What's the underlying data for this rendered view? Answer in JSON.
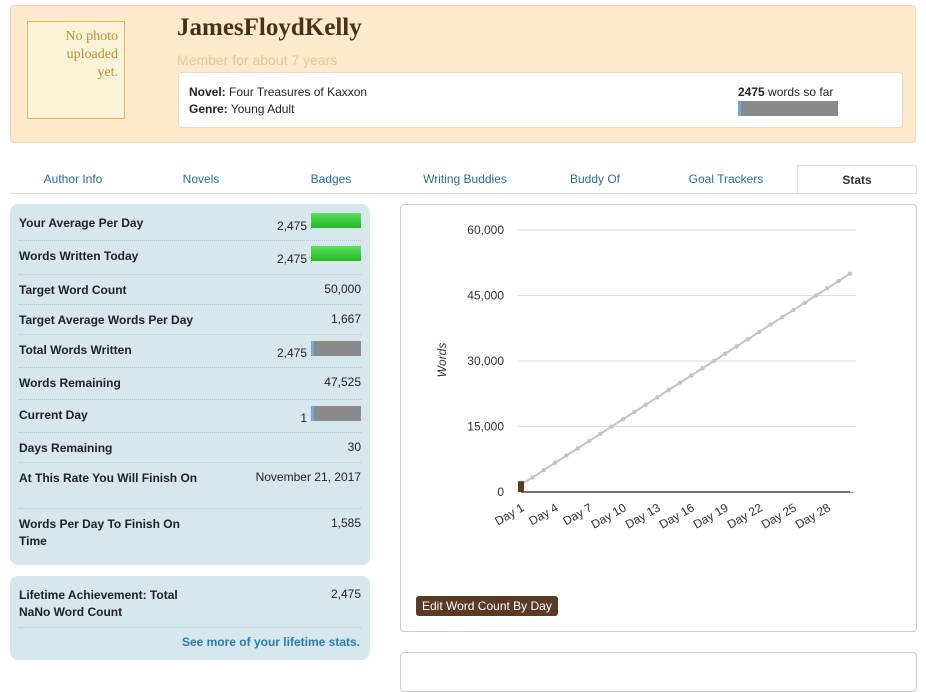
{
  "header": {
    "photo_text": "No photo uploaded yet.",
    "name": "JamesFloydKelly",
    "member": "Member for about 7 years",
    "novel_label": "Novel:",
    "novel": "Four Treasures of Kaxxon",
    "genre_label": "Genre:",
    "genre": "Young Adult",
    "words_count": "2475",
    "words_suffix": "words so far"
  },
  "tabs": [
    "Author Info",
    "Novels",
    "Badges",
    "Writing Buddies",
    "Buddy Of",
    "Goal Trackers",
    "Stats"
  ],
  "stats": {
    "rows": [
      [
        "Your Average Per Day",
        "2,475"
      ],
      [
        "Words Written Today",
        "2,475"
      ],
      [
        "Target Word Count",
        "50,000"
      ],
      [
        "Target Average Words Per Day",
        "1,667"
      ],
      [
        "Total Words Written",
        "2,475"
      ],
      [
        "Words Remaining",
        "47,525"
      ],
      [
        "Current Day",
        "1"
      ],
      [
        "Days Remaining",
        "30"
      ],
      [
        "At This Rate You Will Finish On",
        "November 21, 2017"
      ],
      [
        "Words Per Day To Finish On Time",
        "1,585"
      ]
    ]
  },
  "lifetime": {
    "label": "Lifetime Achievement: Total NaNo Word Count",
    "value": "2,475",
    "link": "See more of your lifetime stats."
  },
  "button": "Edit Word Count By Day",
  "chart_data": {
    "type": "line",
    "ylabel": "Words",
    "categories": [
      "Day 1",
      null,
      null,
      "Day 4",
      null,
      null,
      "Day 7",
      null,
      null,
      "Day 10",
      null,
      null,
      "Day 13",
      null,
      null,
      "Day 16",
      null,
      null,
      "Day 19",
      null,
      null,
      "Day 22",
      null,
      null,
      "Day 25",
      null,
      null,
      "Day 28",
      null,
      null
    ],
    "series": [
      {
        "color": "#c4c4c4",
        "values": [
          1667,
          3333,
          5000,
          6667,
          8333,
          10000,
          11667,
          13333,
          15000,
          16667,
          18333,
          20000,
          21667,
          23333,
          25000,
          26667,
          28333,
          30000,
          31667,
          33333,
          35000,
          36667,
          38333,
          40000,
          41667,
          43333,
          45000,
          46667,
          48333,
          50000
        ]
      },
      {
        "type": "bar",
        "color": "#5b3a24",
        "values": [
          2475,
          0,
          0,
          0,
          0,
          0,
          0,
          0,
          0,
          0,
          0,
          0,
          0,
          0,
          0,
          0,
          0,
          0,
          0,
          0,
          0,
          0,
          0,
          0,
          0,
          0,
          0,
          0,
          0,
          0
        ]
      }
    ],
    "ylim": [
      0,
      60000
    ],
    "yticks": [
      0,
      {
        "value": 15000,
        "label": "15,000"
      },
      {
        "value": 30000,
        "label": "30,000"
      },
      {
        "value": 45000,
        "label": "45,000"
      },
      {
        "value": 60000,
        "label": "60,000"
      }
    ],
    "grid": true
  }
}
